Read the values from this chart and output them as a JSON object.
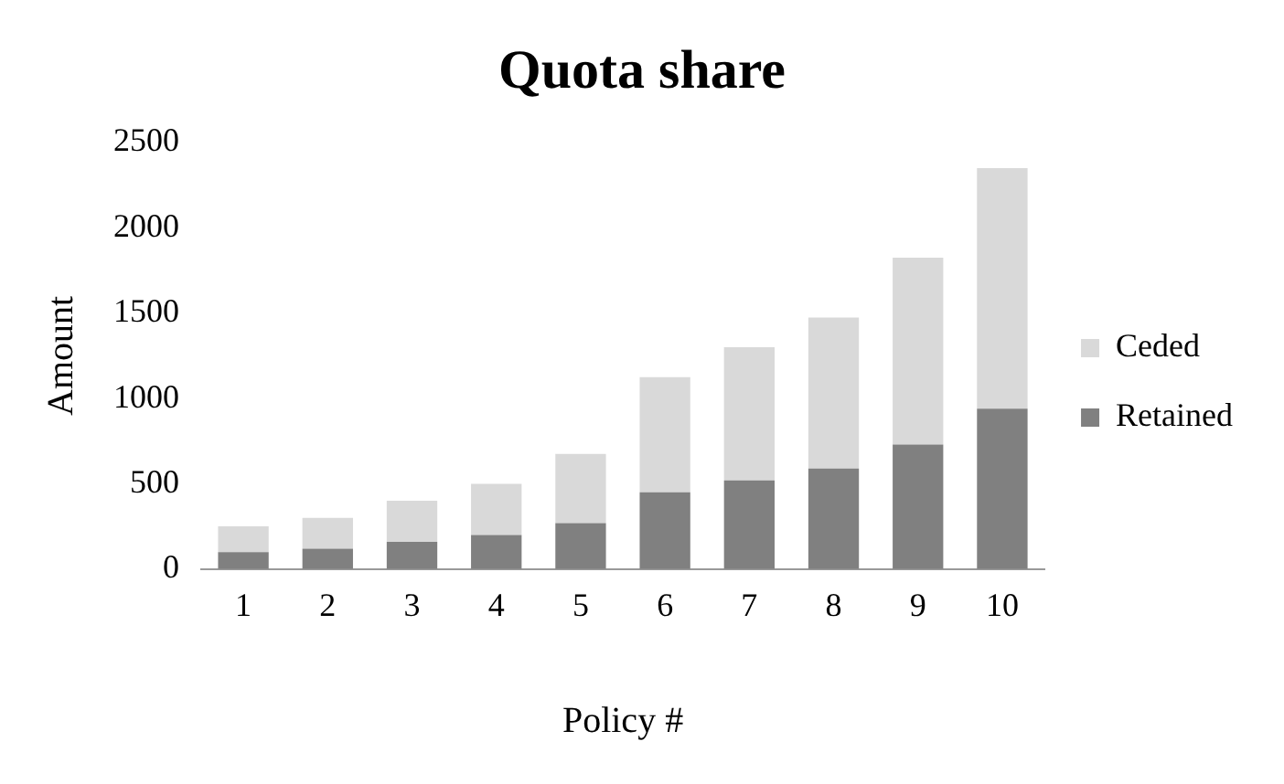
{
  "chart_data": {
    "type": "bar",
    "title": "Quota share",
    "xlabel": "Policy #",
    "ylabel": "Amount",
    "categories": [
      "1",
      "2",
      "3",
      "4",
      "5",
      "6",
      "7",
      "8",
      "9",
      "10"
    ],
    "stacked": true,
    "series": [
      {
        "name": "Retained",
        "color": "#808080",
        "values": [
          100,
          120,
          160,
          200,
          270,
          450,
          520,
          590,
          730,
          940
        ]
      },
      {
        "name": "Ceded",
        "color": "#d9d9d9",
        "values": [
          150,
          180,
          240,
          300,
          405,
          675,
          780,
          885,
          1095,
          1410
        ]
      }
    ],
    "ylim": [
      0,
      2500
    ],
    "yticks": [
      0,
      500,
      1000,
      1500,
      2000,
      2500
    ],
    "grid": false,
    "legend": "right"
  }
}
